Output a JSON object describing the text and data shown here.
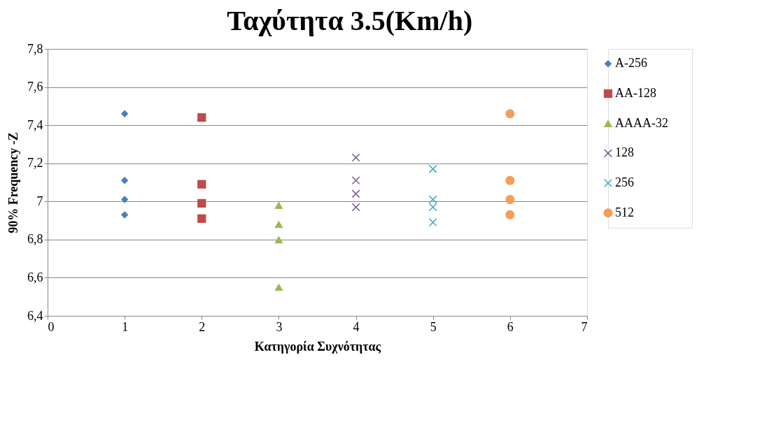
{
  "chart_data": {
    "type": "scatter",
    "title": "Ταχύτητα 3.5(Km/h)",
    "xlabel": "Κατηγορία Συχνότητας",
    "ylabel": "90% Frequency -Z",
    "xlim": [
      0,
      7
    ],
    "xticks": [
      0,
      1,
      2,
      3,
      4,
      5,
      6,
      7
    ],
    "ylim": [
      6.4,
      7.8
    ],
    "yticks": [
      {
        "value": 6.4,
        "label": "6,4"
      },
      {
        "value": 6.6,
        "label": "6,6"
      },
      {
        "value": 6.8,
        "label": "6,8"
      },
      {
        "value": 7.0,
        "label": "7"
      },
      {
        "value": 7.2,
        "label": "7,2"
      },
      {
        "value": 7.4,
        "label": "7,4"
      },
      {
        "value": 7.6,
        "label": "7,6"
      },
      {
        "value": 7.8,
        "label": "7,8"
      }
    ],
    "grid": "y",
    "legend": "right",
    "series": [
      {
        "name": "A-256",
        "color": "#4a7ebb",
        "marker": "diamond",
        "x": [
          1,
          1,
          1,
          1
        ],
        "values": [
          7.46,
          7.11,
          7.01,
          6.93
        ]
      },
      {
        "name": "AA-128",
        "color": "#be4b48",
        "marker": "square",
        "x": [
          2,
          2,
          2,
          2
        ],
        "values": [
          7.44,
          7.09,
          6.99,
          6.91
        ]
      },
      {
        "name": "AAAA-32",
        "color": "#98b954",
        "marker": "triangle",
        "x": [
          3,
          3,
          3,
          3
        ],
        "values": [
          6.98,
          6.88,
          6.8,
          6.55
        ]
      },
      {
        "name": "128",
        "color": "#7d60a0",
        "marker": "cross",
        "x": [
          4,
          4,
          4,
          4
        ],
        "values": [
          7.23,
          7.11,
          7.04,
          6.97
        ]
      },
      {
        "name": "256",
        "color": "#46aac5",
        "marker": "cross",
        "x": [
          5,
          5,
          5,
          5
        ],
        "values": [
          7.17,
          7.01,
          6.97,
          6.89
        ]
      },
      {
        "name": "512",
        "color": "#f59d56",
        "marker": "circle",
        "x": [
          6,
          6,
          6,
          6
        ],
        "values": [
          7.46,
          7.11,
          7.01,
          6.93
        ]
      }
    ]
  }
}
